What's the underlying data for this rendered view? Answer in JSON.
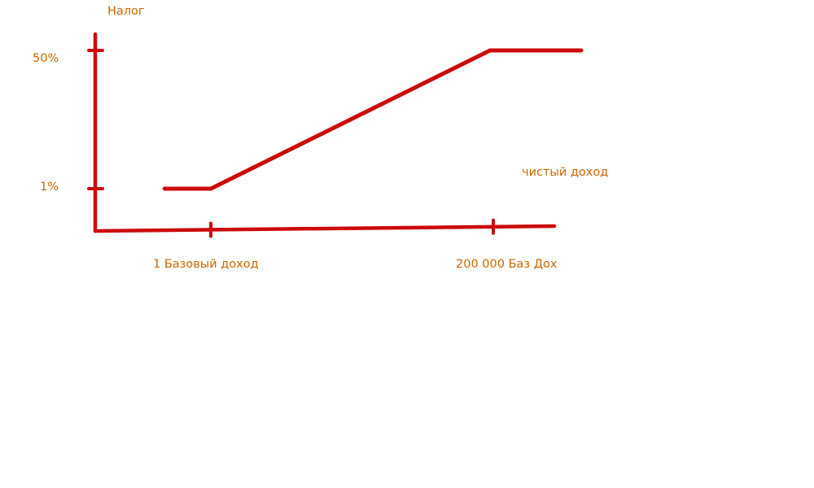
{
  "chart_data": {
    "type": "line",
    "title": "",
    "xlabel": "чистый доход",
    "ylabel": "Налог",
    "x_tick_labels": [
      "1 Базовый доход",
      "200 000 Баз Дох"
    ],
    "y_tick_labels": [
      "1%",
      "50%"
    ],
    "series": [
      {
        "x": [
          0.6,
          1,
          200000,
          232000
        ],
        "y": [
          1,
          1,
          50,
          50
        ]
      }
    ],
    "grid": false,
    "colors": {
      "line": "#cc0a0a",
      "axis": "#cc0a0a",
      "text": "#cc6600"
    }
  }
}
